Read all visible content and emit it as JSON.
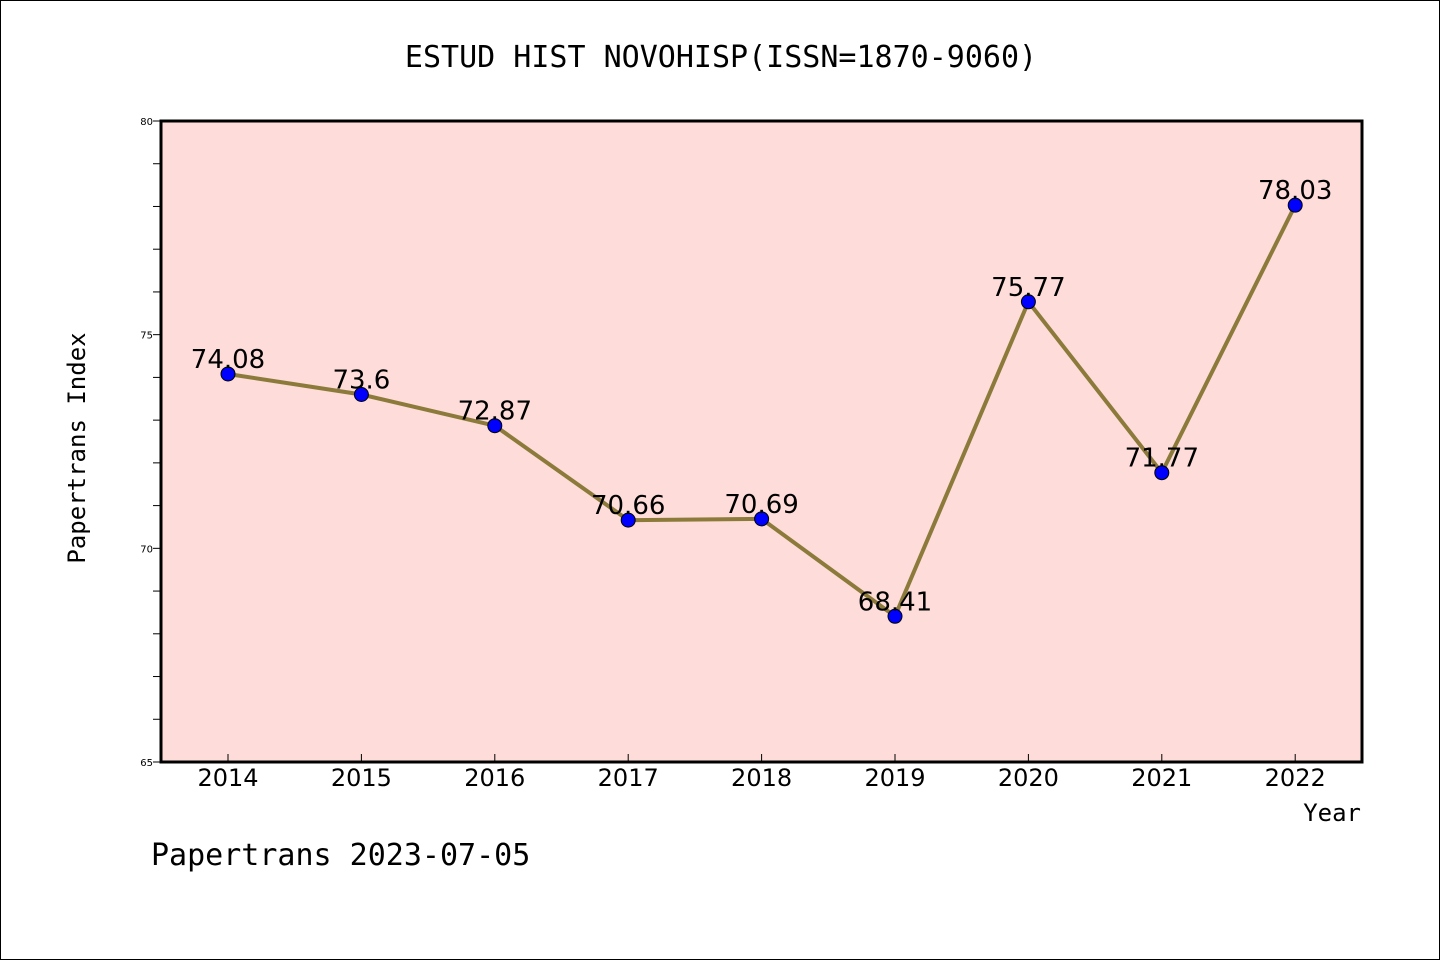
{
  "chart_data": {
    "type": "line",
    "title": "ESTUD HIST NOVOHISP(ISSN=1870-9060)",
    "xlabel": "Year",
    "ylabel": "Papertrans Index",
    "footer": "Papertrans 2023-07-05",
    "categories": [
      "2014",
      "2015",
      "2016",
      "2017",
      "2018",
      "2019",
      "2020",
      "2021",
      "2022"
    ],
    "series": [
      {
        "values": [
          74.08,
          73.6,
          72.87,
          70.66,
          70.69,
          68.41,
          75.77,
          71.77,
          78.03
        ],
        "data_labels": [
          "74.08",
          "73.6",
          "72.87",
          "70.66",
          "70.69",
          "68.41",
          "75.77",
          "71.77",
          "78.03"
        ],
        "line_color": "#8B7A3A",
        "marker_color": "#0000FF"
      }
    ],
    "ylim": [
      65,
      80
    ],
    "yticks": [
      "65",
      "70",
      "75",
      "80"
    ],
    "plot_background": "#FDDCD9",
    "grid": false
  }
}
